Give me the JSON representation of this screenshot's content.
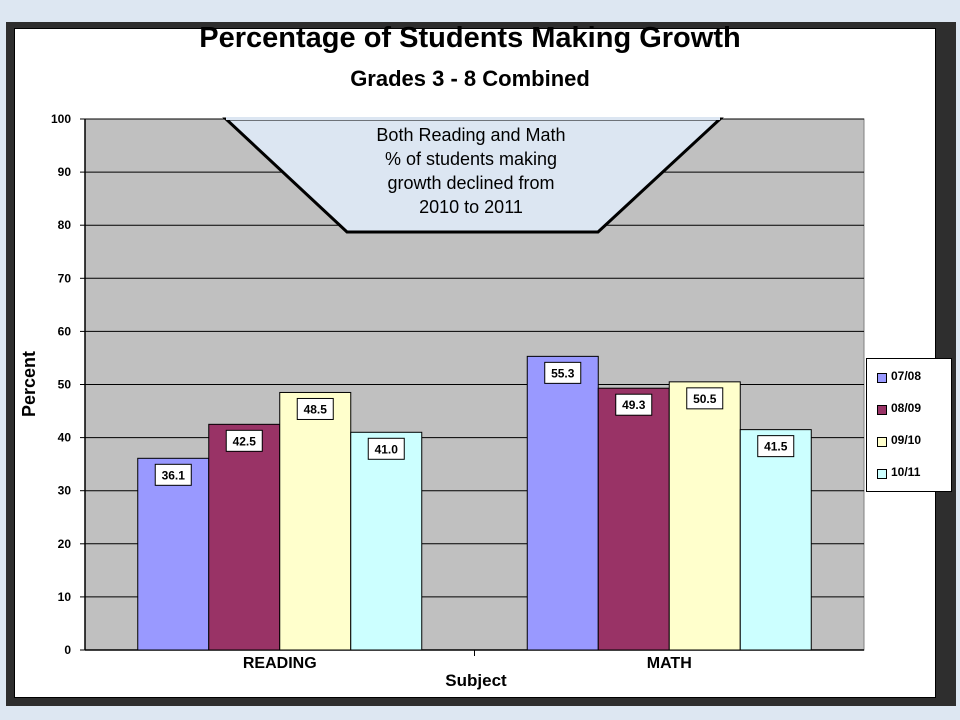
{
  "chart_data": {
    "type": "bar",
    "title": "Percentage of Students Making Growth",
    "subtitle": "Grades 3 - 8 Combined",
    "xlabel": "Subject",
    "ylabel": "Percent",
    "ylim": [
      0,
      100
    ],
    "yticks": [
      0,
      10,
      20,
      30,
      40,
      50,
      60,
      70,
      80,
      90,
      100
    ],
    "categories": [
      "READING",
      "MATH"
    ],
    "series": [
      {
        "name": "07/08",
        "color": "#9999ff",
        "values": [
          36.1,
          55.3
        ],
        "labels": [
          "36.1",
          "55.3"
        ]
      },
      {
        "name": "08/09",
        "color": "#993366",
        "values": [
          42.5,
          49.3
        ],
        "labels": [
          "42.5",
          "49.3"
        ]
      },
      {
        "name": "09/10",
        "color": "#ffffcc",
        "values": [
          48.5,
          50.5
        ],
        "labels": [
          "48.5",
          "50.5"
        ]
      },
      {
        "name": "10/11",
        "color": "#ccffff",
        "values": [
          41.0,
          41.5
        ],
        "labels": [
          "41.0",
          "41.5"
        ]
      }
    ],
    "grid": true,
    "plot_background": "#c0c0c0",
    "legend_position": "right",
    "annotation": {
      "lines": [
        "Both Reading and Math",
        "% of students making",
        "growth declined from",
        "2010 to 2011"
      ],
      "fill": "#dce6f2"
    }
  }
}
